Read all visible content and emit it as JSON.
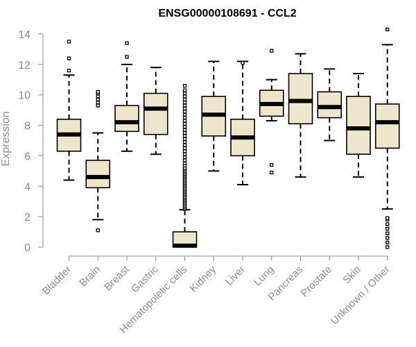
{
  "chart_data": {
    "type": "boxplot",
    "title": "ENSG00000108691 - CCL2",
    "ylabel": "Expression",
    "xlabel": "",
    "ylim": [
      0,
      14.5
    ],
    "yticks": [
      0,
      2,
      4,
      6,
      8,
      10,
      12,
      14
    ],
    "categories": [
      "Bladder",
      "Brain",
      "Breast",
      "Gastric",
      "Hematopoietic cells",
      "Kidney",
      "Liver",
      "Lung",
      "Pancreas",
      "Prostate",
      "Skin",
      "Unknown / Other"
    ],
    "box_color": "#ede6cd",
    "boxes": [
      {
        "whisker_low": 4.4,
        "q1": 6.3,
        "median": 7.4,
        "q3": 8.4,
        "whisker_high": 11.3,
        "outliers": [
          11.6,
          12.4,
          13.5
        ]
      },
      {
        "whisker_low": 1.8,
        "q1": 3.9,
        "median": 4.6,
        "q3": 5.7,
        "whisker_high": 7.5,
        "outliers": [
          1.1,
          9.3,
          9.5,
          9.7,
          9.9,
          10.1,
          10.2
        ]
      },
      {
        "whisker_low": 6.3,
        "q1": 7.6,
        "median": 8.2,
        "q3": 9.3,
        "whisker_high": 12.0,
        "outliers": [
          12.5,
          13.4
        ]
      },
      {
        "whisker_low": 6.1,
        "q1": 7.4,
        "median": 9.1,
        "q3": 10.1,
        "whisker_high": 11.8,
        "outliers": []
      },
      {
        "whisker_low": 0.0,
        "q1": 0.0,
        "median": 0.05,
        "q3": 1.0,
        "whisker_high": 2.45,
        "outliers": [
          2.5,
          2.6,
          2.7,
          2.8,
          2.9,
          3.0,
          3.1,
          3.2,
          3.3,
          3.4,
          3.5,
          3.6,
          3.7,
          3.8,
          3.9,
          4.0,
          4.1,
          4.2,
          4.3,
          4.4,
          4.5,
          4.6,
          4.7,
          4.8,
          4.9,
          5.0,
          5.1,
          5.2,
          5.35,
          5.5,
          5.7,
          5.9,
          6.1,
          6.3,
          6.5,
          6.7,
          6.9,
          7.1,
          7.3,
          7.5,
          7.7,
          7.9,
          8.1,
          8.3,
          8.5,
          8.7,
          8.9,
          9.1,
          9.3,
          9.5,
          9.7,
          9.9,
          10.1,
          10.3,
          10.6
        ]
      },
      {
        "whisker_low": 5.0,
        "q1": 7.3,
        "median": 8.7,
        "q3": 9.9,
        "whisker_high": 12.2,
        "outliers": []
      },
      {
        "whisker_low": 4.1,
        "q1": 6.0,
        "median": 7.2,
        "q3": 8.4,
        "whisker_high": 12.2,
        "outliers": [
          12.1
        ]
      },
      {
        "whisker_low": 8.3,
        "q1": 8.6,
        "median": 9.4,
        "q3": 10.3,
        "whisker_high": 11.0,
        "outliers": [
          4.9,
          5.4,
          12.9
        ]
      },
      {
        "whisker_low": 4.6,
        "q1": 8.1,
        "median": 9.6,
        "q3": 11.4,
        "whisker_high": 12.7,
        "outliers": []
      },
      {
        "whisker_low": 7.0,
        "q1": 8.5,
        "median": 9.2,
        "q3": 10.2,
        "whisker_high": 11.7,
        "outliers": []
      },
      {
        "whisker_low": 4.6,
        "q1": 6.1,
        "median": 7.8,
        "q3": 9.9,
        "whisker_high": 11.4,
        "outliers": []
      },
      {
        "whisker_low": 2.5,
        "q1": 6.5,
        "median": 8.2,
        "q3": 9.4,
        "whisker_high": 13.3,
        "outliers": [
          0.0,
          0.3,
          0.6,
          0.9,
          1.2,
          1.5,
          1.8,
          1.9,
          14.3
        ]
      }
    ]
  }
}
